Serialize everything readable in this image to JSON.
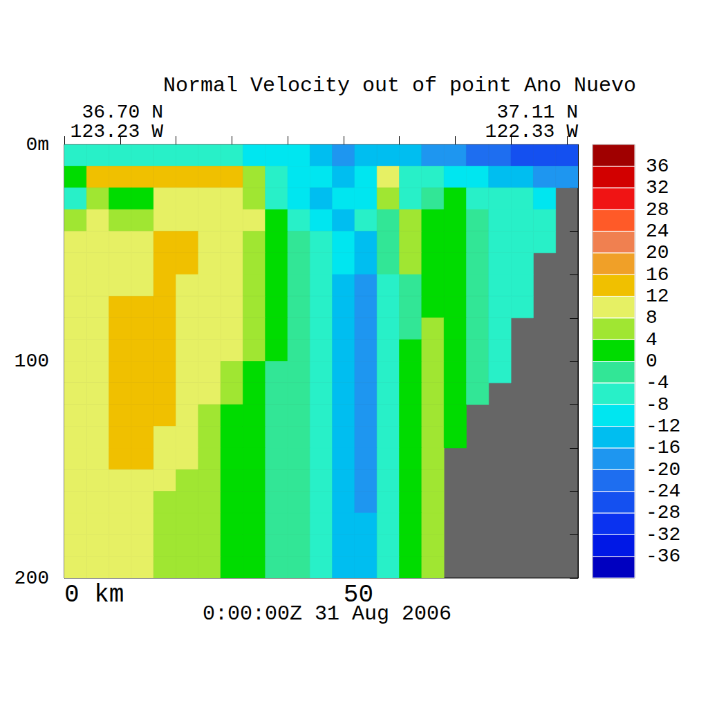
{
  "chart_data": {
    "type": "contour",
    "title": "Normal Velocity out of point Ano Nuevo",
    "corner_labels": {
      "left": [
        "36.70 N",
        "123.23 W"
      ],
      "right": [
        "37.11 N",
        "122.33 W"
      ]
    },
    "annotation": "0:00:00Z 31 Aug 2006",
    "xlim": [
      0,
      92
    ],
    "xticks": [
      {
        "value": 0,
        "label": "0 km"
      },
      50
    ],
    "x_minor_ticks": [
      10,
      20,
      30,
      40,
      60,
      70,
      80,
      90
    ],
    "ylim": [
      0,
      200
    ],
    "yticks": [
      {
        "value": 0,
        "label": "0m"
      },
      100,
      200
    ],
    "y_minor_ticks": [
      20,
      40,
      60,
      80,
      120,
      140,
      160,
      180
    ],
    "x": [
      2,
      6,
      10,
      14,
      18,
      22,
      26,
      30,
      34,
      38,
      42,
      46,
      50,
      54,
      58,
      62,
      66,
      70,
      74,
      78,
      82,
      86,
      90
    ],
    "depth": [
      5,
      15,
      25,
      35,
      45,
      55,
      65,
      75,
      85,
      95,
      105,
      115,
      125,
      135,
      145,
      155,
      165,
      175,
      185,
      195
    ],
    "cells": [
      [
        -6,
        -6,
        -6,
        -6,
        -6,
        -6,
        -6,
        -6,
        -10,
        -10,
        -10,
        -14,
        -18,
        -14,
        -14,
        -14,
        -18,
        -18,
        -22,
        -22,
        -26,
        -26,
        -26
      ],
      [
        2,
        14,
        14,
        14,
        14,
        14,
        14,
        14,
        6,
        -6,
        -10,
        -10,
        -14,
        -10,
        10,
        -6,
        -6,
        -10,
        -10,
        -14,
        -14,
        -18,
        -18
      ],
      [
        -6,
        6,
        2,
        2,
        10,
        10,
        10,
        10,
        6,
        -6,
        -10,
        -14,
        -10,
        -10,
        6,
        -6,
        -2,
        2,
        -6,
        -6,
        -6,
        -10,
        null
      ],
      [
        6,
        10,
        6,
        6,
        10,
        10,
        10,
        10,
        10,
        2,
        -6,
        -10,
        -14,
        -6,
        -2,
        6,
        2,
        2,
        -2,
        -6,
        -6,
        -6,
        null
      ],
      [
        10,
        10,
        10,
        10,
        14,
        14,
        10,
        10,
        6,
        2,
        -2,
        -6,
        -10,
        -14,
        -2,
        6,
        2,
        2,
        -2,
        -6,
        -6,
        -6,
        null
      ],
      [
        10,
        10,
        10,
        10,
        14,
        14,
        10,
        10,
        6,
        2,
        -2,
        -6,
        -10,
        -14,
        -2,
        6,
        2,
        2,
        -2,
        -6,
        -6,
        null,
        null
      ],
      [
        10,
        10,
        10,
        10,
        14,
        10,
        10,
        10,
        6,
        2,
        -2,
        -6,
        -14,
        -18,
        -6,
        -2,
        2,
        2,
        -2,
        -6,
        -6,
        null,
        null
      ],
      [
        10,
        10,
        14,
        14,
        14,
        10,
        10,
        10,
        6,
        2,
        -2,
        -6,
        -14,
        -18,
        -6,
        -2,
        2,
        2,
        -2,
        -6,
        -6,
        null,
        null
      ],
      [
        10,
        10,
        14,
        14,
        14,
        10,
        10,
        10,
        6,
        2,
        -2,
        -6,
        -14,
        -18,
        -6,
        -2,
        6,
        2,
        -2,
        -6,
        null,
        null,
        null
      ],
      [
        10,
        10,
        14,
        14,
        14,
        10,
        10,
        10,
        6,
        2,
        -2,
        -6,
        -14,
        -18,
        -6,
        2,
        6,
        2,
        -2,
        -6,
        null,
        null,
        null
      ],
      [
        10,
        10,
        14,
        14,
        14,
        10,
        10,
        6,
        2,
        -2,
        -2,
        -6,
        -14,
        -18,
        -6,
        2,
        6,
        2,
        -2,
        -6,
        null,
        null,
        null
      ],
      [
        10,
        10,
        14,
        14,
        14,
        10,
        10,
        6,
        2,
        -2,
        -2,
        -6,
        -14,
        -18,
        -6,
        2,
        6,
        2,
        -2,
        null,
        null,
        null,
        null
      ],
      [
        10,
        10,
        14,
        14,
        14,
        10,
        6,
        2,
        2,
        -2,
        -2,
        -6,
        -14,
        -18,
        -6,
        2,
        6,
        2,
        null,
        null,
        null,
        null,
        null
      ],
      [
        10,
        10,
        14,
        14,
        10,
        10,
        6,
        2,
        2,
        -2,
        -2,
        -6,
        -14,
        -18,
        -6,
        2,
        6,
        2,
        null,
        null,
        null,
        null,
        null
      ],
      [
        10,
        10,
        14,
        14,
        10,
        10,
        6,
        2,
        2,
        -2,
        -2,
        -6,
        -14,
        -18,
        -6,
        2,
        6,
        null,
        null,
        null,
        null,
        null,
        null
      ],
      [
        10,
        10,
        10,
        10,
        10,
        6,
        6,
        2,
        2,
        -2,
        -2,
        -6,
        -14,
        -18,
        -6,
        2,
        6,
        null,
        null,
        null,
        null,
        null,
        null
      ],
      [
        10,
        10,
        10,
        10,
        6,
        6,
        6,
        2,
        2,
        -2,
        -2,
        -6,
        -14,
        -18,
        -6,
        2,
        6,
        null,
        null,
        null,
        null,
        null,
        null
      ],
      [
        10,
        10,
        10,
        10,
        6,
        6,
        6,
        2,
        2,
        -2,
        -2,
        -6,
        -14,
        -14,
        -6,
        2,
        6,
        null,
        null,
        null,
        null,
        null,
        null
      ],
      [
        10,
        10,
        10,
        10,
        6,
        6,
        6,
        2,
        2,
        -2,
        -2,
        -6,
        -14,
        -14,
        -6,
        2,
        6,
        null,
        null,
        null,
        null,
        null,
        null
      ],
      [
        10,
        10,
        10,
        10,
        6,
        6,
        6,
        2,
        2,
        -2,
        -2,
        -6,
        -14,
        -14,
        -6,
        2,
        6,
        null,
        null,
        null,
        null,
        null,
        null
      ]
    ],
    "colorbar": {
      "range": [
        -40,
        40
      ],
      "levels": [
        -40,
        -36,
        -32,
        -28,
        -24,
        -20,
        -16,
        -12,
        -8,
        -4,
        0,
        4,
        8,
        12,
        16,
        20,
        24,
        28,
        32,
        36,
        40
      ],
      "ticks": [
        -36,
        -32,
        -28,
        -24,
        -20,
        -16,
        -12,
        -8,
        -4,
        0,
        4,
        8,
        12,
        16,
        20,
        24,
        28,
        32,
        36
      ],
      "colors": [
        "#0000c0",
        "#0018e6",
        "#0a32f0",
        "#1450f0",
        "#1e6ef0",
        "#1e96f0",
        "#00bef0",
        "#00e6f0",
        "#28f0c8",
        "#32e696",
        "#00dc00",
        "#a0e632",
        "#e6f064",
        "#f0c000",
        "#f0a028",
        "#f08050",
        "#ff5a28",
        "#f01414",
        "#d20000",
        "#a00000"
      ]
    },
    "grid": false
  }
}
